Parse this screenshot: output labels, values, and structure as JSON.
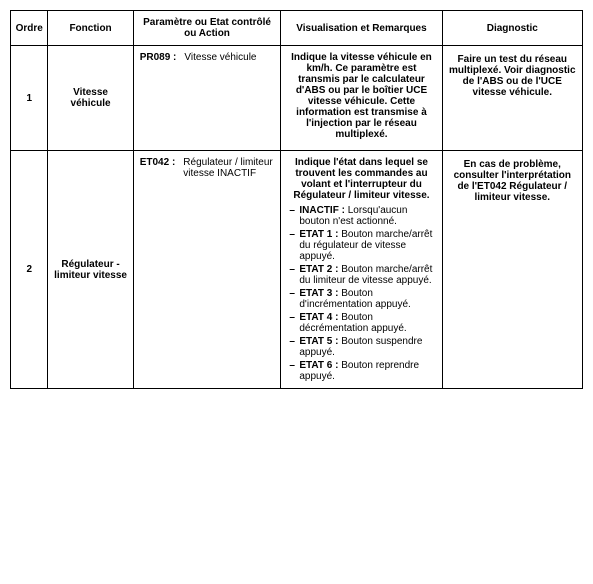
{
  "columns": {
    "ordre": "Ordre",
    "fonction": "Fonction",
    "param": "Paramètre ou Etat contrôlé ou Action",
    "visual": "Visualisation et Remarques",
    "diag": "Diagnostic"
  },
  "rows": [
    {
      "ordre": "1",
      "fonction": "Vitesse véhicule",
      "param_code": "PR089 :",
      "param_desc": "Vitesse véhicule",
      "visual_intro": "Indique la vitesse véhicule en km/h. Ce paramètre est transmis par le calculateur d'ABS ou par le boîtier UCE vitesse véhicule. Cette information est transmise à l'injection par le réseau multiplexé.",
      "states": [],
      "diag": "Faire un test du réseau multiplexé. Voir diagnostic de l'ABS ou de l'UCE vitesse véhicule."
    },
    {
      "ordre": "2",
      "fonction": "Régulateur - limiteur vitesse",
      "param_code": "ET042 :",
      "param_desc": "Régulateur / limiteur vitesse INACTIF",
      "visual_intro": "Indique l'état dans lequel se trouvent les commandes au volant et l'interrupteur du Régulateur / limiteur vitesse.",
      "states": [
        {
          "label": "INACTIF :",
          "text": "Lorsqu'aucun bouton n'est actionné."
        },
        {
          "label": "ETAT 1 :",
          "text": "Bouton marche/arrêt du régulateur de vitesse appuyé."
        },
        {
          "label": "ETAT 2 :",
          "text": "Bouton marche/arrêt du limiteur de vitesse appuyé."
        },
        {
          "label": "ETAT 3 :",
          "text": "Bouton d'incrémentation appuyé."
        },
        {
          "label": "ETAT 4 :",
          "text": "Bouton décrémentation appuyé."
        },
        {
          "label": "ETAT 5 :",
          "text": "Bouton suspendre appuyé."
        },
        {
          "label": "ETAT 6 :",
          "text": "Bouton reprendre appuyé."
        }
      ],
      "diag": "En cas de problème, consulter l'interprétation de l'ET042 Régulateur / limiteur vitesse."
    }
  ]
}
